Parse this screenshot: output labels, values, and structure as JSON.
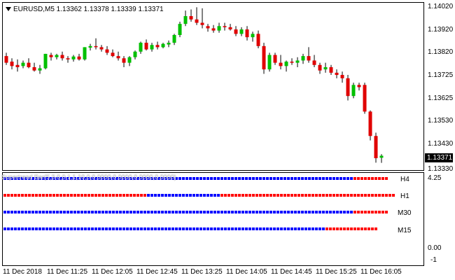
{
  "chart_title": "EURUSD,M5  1.13362 1.13378 1.13339 1.13371",
  "current_price": "1.13371",
  "price_axis": [
    "1.14020",
    "1.13920",
    "1.13820",
    "1.13725",
    "1.13625",
    "1.13530",
    "1.13430",
    "1.13330"
  ],
  "indicator_axis": [
    "4.25",
    "0.00",
    "-1"
  ],
  "indicator_overlay": "Supertrend Bar(5,3,0,0,1,1,10,0,0.0000,0.0000,0.0000,0.0000)",
  "time_axis": [
    "11 Dec 2018",
    "11 Dec 11:25",
    "11 Dec 12:05",
    "11 Dec 12:45",
    "11 Dec 13:25",
    "11 Dec 14:05",
    "11 Dec 14:45",
    "11 Dec 15:25",
    "11 Dec 16:05"
  ],
  "colors": {
    "bull": "#00c000",
    "bear": "#e00000",
    "bar_blue": "#0000ff",
    "bar_red": "#ff0000",
    "background": "#ffffff"
  },
  "chart_data": {
    "type": "candlestick",
    "symbol": "EURUSD",
    "timeframe": "M5",
    "ylim": [
      1.133,
      1.1406
    ],
    "candles": [
      {
        "o": 1.1382,
        "h": 1.13835,
        "l": 1.1378,
        "c": 1.1379
      },
      {
        "o": 1.13795,
        "h": 1.1381,
        "l": 1.1376,
        "c": 1.13775
      },
      {
        "o": 1.1378,
        "h": 1.13805,
        "l": 1.1375,
        "c": 1.1377
      },
      {
        "o": 1.13775,
        "h": 1.138,
        "l": 1.13765,
        "c": 1.1379
      },
      {
        "o": 1.1379,
        "h": 1.1381,
        "l": 1.13765,
        "c": 1.1377
      },
      {
        "o": 1.1377,
        "h": 1.1379,
        "l": 1.1375,
        "c": 1.13755
      },
      {
        "o": 1.13755,
        "h": 1.1378,
        "l": 1.1374,
        "c": 1.13765
      },
      {
        "o": 1.13765,
        "h": 1.1383,
        "l": 1.1376,
        "c": 1.1383
      },
      {
        "o": 1.13825,
        "h": 1.13835,
        "l": 1.138,
        "c": 1.13815
      },
      {
        "o": 1.13815,
        "h": 1.1383,
        "l": 1.13805,
        "c": 1.13825
      },
      {
        "o": 1.13825,
        "h": 1.1384,
        "l": 1.138,
        "c": 1.1381
      },
      {
        "o": 1.1381,
        "h": 1.1382,
        "l": 1.1379,
        "c": 1.13805
      },
      {
        "o": 1.13805,
        "h": 1.13825,
        "l": 1.13795,
        "c": 1.13818
      },
      {
        "o": 1.13818,
        "h": 1.1383,
        "l": 1.138,
        "c": 1.13805
      },
      {
        "o": 1.13805,
        "h": 1.1386,
        "l": 1.138,
        "c": 1.1386
      },
      {
        "o": 1.13858,
        "h": 1.13875,
        "l": 1.13845,
        "c": 1.13865
      },
      {
        "o": 1.13865,
        "h": 1.139,
        "l": 1.1385,
        "c": 1.1386
      },
      {
        "o": 1.1386,
        "h": 1.1387,
        "l": 1.1384,
        "c": 1.1385
      },
      {
        "o": 1.1385,
        "h": 1.13865,
        "l": 1.13825,
        "c": 1.13835
      },
      {
        "o": 1.13835,
        "h": 1.1385,
        "l": 1.13815,
        "c": 1.1382
      },
      {
        "o": 1.1382,
        "h": 1.1384,
        "l": 1.138,
        "c": 1.1381
      },
      {
        "o": 1.1381,
        "h": 1.1382,
        "l": 1.1377,
        "c": 1.1379
      },
      {
        "o": 1.1379,
        "h": 1.1382,
        "l": 1.13775,
        "c": 1.13815
      },
      {
        "o": 1.13815,
        "h": 1.13845,
        "l": 1.13805,
        "c": 1.1384
      },
      {
        "o": 1.1384,
        "h": 1.13885,
        "l": 1.1383,
        "c": 1.1388
      },
      {
        "o": 1.1388,
        "h": 1.13895,
        "l": 1.13845,
        "c": 1.1385
      },
      {
        "o": 1.1385,
        "h": 1.1388,
        "l": 1.1384,
        "c": 1.1387
      },
      {
        "o": 1.1387,
        "h": 1.13885,
        "l": 1.1385,
        "c": 1.1386
      },
      {
        "o": 1.1386,
        "h": 1.1388,
        "l": 1.13855,
        "c": 1.13875
      },
      {
        "o": 1.13872,
        "h": 1.1389,
        "l": 1.1386,
        "c": 1.1388
      },
      {
        "o": 1.1388,
        "h": 1.1392,
        "l": 1.1387,
        "c": 1.13915
      },
      {
        "o": 1.13915,
        "h": 1.13975,
        "l": 1.13905,
        "c": 1.13965
      },
      {
        "o": 1.13965,
        "h": 1.14025,
        "l": 1.13955,
        "c": 1.14
      },
      {
        "o": 1.14,
        "h": 1.1403,
        "l": 1.13975,
        "c": 1.13985
      },
      {
        "o": 1.13985,
        "h": 1.1404,
        "l": 1.1396,
        "c": 1.1397
      },
      {
        "o": 1.1397,
        "h": 1.14035,
        "l": 1.13945,
        "c": 1.1396
      },
      {
        "o": 1.13955,
        "h": 1.13965,
        "l": 1.1393,
        "c": 1.13945
      },
      {
        "o": 1.13945,
        "h": 1.1396,
        "l": 1.13925,
        "c": 1.13935
      },
      {
        "o": 1.13935,
        "h": 1.1397,
        "l": 1.13925,
        "c": 1.13955
      },
      {
        "o": 1.13955,
        "h": 1.1397,
        "l": 1.13935,
        "c": 1.1395
      },
      {
        "o": 1.1395,
        "h": 1.13965,
        "l": 1.13935,
        "c": 1.1394
      },
      {
        "o": 1.1394,
        "h": 1.13955,
        "l": 1.1391,
        "c": 1.1392
      },
      {
        "o": 1.1392,
        "h": 1.1395,
        "l": 1.1391,
        "c": 1.1394
      },
      {
        "o": 1.1394,
        "h": 1.13955,
        "l": 1.1389,
        "c": 1.13905
      },
      {
        "o": 1.13905,
        "h": 1.1393,
        "l": 1.13885,
        "c": 1.1392
      },
      {
        "o": 1.1392,
        "h": 1.13935,
        "l": 1.13855,
        "c": 1.13865
      },
      {
        "o": 1.13865,
        "h": 1.1388,
        "l": 1.1374,
        "c": 1.1376
      },
      {
        "o": 1.1376,
        "h": 1.13835,
        "l": 1.1375,
        "c": 1.13825
      },
      {
        "o": 1.13825,
        "h": 1.13835,
        "l": 1.1378,
        "c": 1.1379
      },
      {
        "o": 1.1379,
        "h": 1.13825,
        "l": 1.1376,
        "c": 1.13775
      },
      {
        "o": 1.13775,
        "h": 1.138,
        "l": 1.1375,
        "c": 1.13795
      },
      {
        "o": 1.13795,
        "h": 1.1381,
        "l": 1.1378,
        "c": 1.1379
      },
      {
        "o": 1.1379,
        "h": 1.13815,
        "l": 1.1377,
        "c": 1.138
      },
      {
        "o": 1.138,
        "h": 1.1383,
        "l": 1.13785,
        "c": 1.1382
      },
      {
        "o": 1.1382,
        "h": 1.1386,
        "l": 1.1379,
        "c": 1.138
      },
      {
        "o": 1.138,
        "h": 1.13825,
        "l": 1.1377,
        "c": 1.1378
      },
      {
        "o": 1.1378,
        "h": 1.1379,
        "l": 1.1374,
        "c": 1.13755
      },
      {
        "o": 1.1376,
        "h": 1.1379,
        "l": 1.13745,
        "c": 1.1377
      },
      {
        "o": 1.1377,
        "h": 1.1378,
        "l": 1.13735,
        "c": 1.13745
      },
      {
        "o": 1.13745,
        "h": 1.1376,
        "l": 1.1372,
        "c": 1.13735
      },
      {
        "o": 1.13735,
        "h": 1.1375,
        "l": 1.137,
        "c": 1.1372
      },
      {
        "o": 1.1372,
        "h": 1.13735,
        "l": 1.1362,
        "c": 1.1364
      },
      {
        "o": 1.1364,
        "h": 1.137,
        "l": 1.1363,
        "c": 1.1369
      },
      {
        "o": 1.1369,
        "h": 1.137,
        "l": 1.13665,
        "c": 1.1368
      },
      {
        "o": 1.1369,
        "h": 1.137,
        "l": 1.1356,
        "c": 1.1357
      },
      {
        "o": 1.1357,
        "h": 1.13575,
        "l": 1.1344,
        "c": 1.1346
      },
      {
        "o": 1.1346,
        "h": 1.13475,
        "l": 1.1334,
        "c": 1.1336
      },
      {
        "o": 1.13362,
        "h": 1.13378,
        "l": 1.13339,
        "c": 1.13371
      }
    ],
    "indicator_rows": [
      {
        "label": "H4",
        "colors": "BBBBBBBBBBBBBBBBBBBBBBBBBBBBBBBBBBBBBBBBBBBBBBBBBBBBBBBBBBBBBBBBBBBBBBBBBBBBBBBBBBBBBBBBBBBBBBBBBBBBRRRRRRRRRR"
      },
      {
        "label": "H1",
        "colors": "RRRRRRRRRRRRRRRRRRRRRRRRRRRRRRRRRRRRRRRRRBBBBBBBBBBBBBBBBBBBBBRRRRRRRRRRRRRRRRRRRRRRRRRRRRRRRRRRRRRRRRRRRRRRRRRR"
      },
      {
        "label": "M30",
        "colors": "BBBBBBBBBBBBBBBBBBBBBBBBBBBBBBBBBBBBBBBBBBBBBBBBBBBBBBBBBBBBBBBBBBBBBBBBBBBBBBBBBBBBBBBBBBBBBBBBBBBBRRRRRRRRRR"
      },
      {
        "label": "M15",
        "colors": "BBBBBBBBBBBBBBBBBBBBBBBBBBBBBBBBBBBBBBBBBBBBBBBBBBBBBBBBBBBBBBBBBBBBBBBBBBBBBBBBBBBBBBBBBBBBRRRRRRRRRRRRRRR"
      }
    ]
  }
}
